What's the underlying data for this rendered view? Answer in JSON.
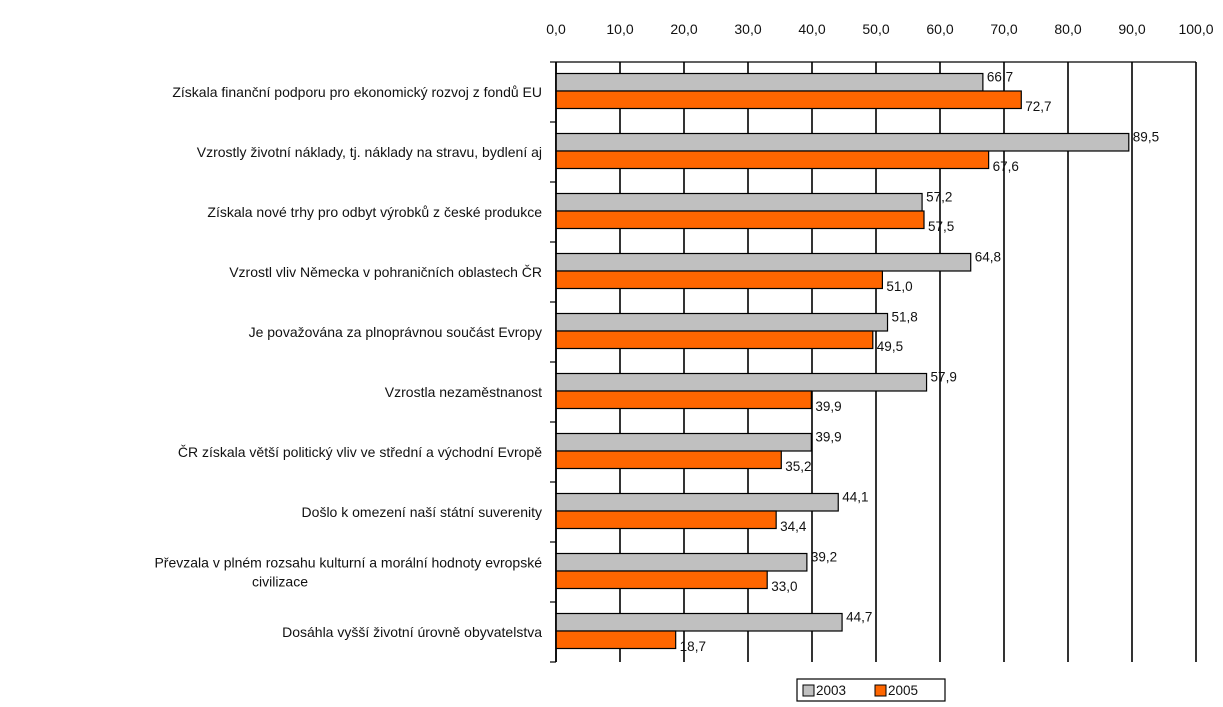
{
  "chart_data": {
    "type": "bar",
    "orientation": "horizontal",
    "xlim": [
      0,
      100
    ],
    "x_ticks": [
      "0,0",
      "10,0",
      "20,0",
      "30,0",
      "40,0",
      "50,0",
      "60,0",
      "70,0",
      "80,0",
      "90,0",
      "100,0"
    ],
    "x_tick_values": [
      0,
      10,
      20,
      30,
      40,
      50,
      60,
      70,
      80,
      90,
      100
    ],
    "x_axis_position": "top",
    "grid": true,
    "legend": "bottom",
    "categories": [
      [
        "Získala finanční podporu pro ekonomický rozvoj z fondů EU"
      ],
      [
        "Vzrostly životní náklady, tj. náklady na stravu, bydlení aj"
      ],
      [
        "Získala nové trhy pro odbyt výrobků z české produkce"
      ],
      [
        "Vzrostl vliv Německa v pohraničních oblastech ČR"
      ],
      [
        "Je považována za plnoprávnou součást Evropy"
      ],
      [
        "Vzrostla nezaměstnanost"
      ],
      [
        "ČR získala větší politický vliv ve střední a východní Evropě"
      ],
      [
        "Došlo k omezení naší státní suverenity"
      ],
      [
        "Převzala v plném rozsahu kulturní a morální hodnoty evropské",
        "civilizace"
      ],
      [
        "Dosáhla vyšší životní úrovně obyvatelstva"
      ]
    ],
    "series": [
      {
        "name": "2003",
        "color": "#c0c0c0",
        "values": [
          66.7,
          89.5,
          57.2,
          64.8,
          51.8,
          57.9,
          39.9,
          44.1,
          39.2,
          44.7
        ],
        "labels": [
          "66,7",
          "89,5",
          "57,2",
          "64,8",
          "51,8",
          "57,9",
          "39,9",
          "44,1",
          "39,2",
          "44,7"
        ]
      },
      {
        "name": "2005",
        "color": "#ff6600",
        "values": [
          72.7,
          67.6,
          57.5,
          51.0,
          49.5,
          39.9,
          35.2,
          34.4,
          33.0,
          18.7
        ],
        "labels": [
          "72,7",
          "67,6",
          "57,5",
          "51,0",
          "49,5",
          "39,9",
          "35,2",
          "34,4",
          "33,0",
          "18,7"
        ]
      }
    ]
  }
}
